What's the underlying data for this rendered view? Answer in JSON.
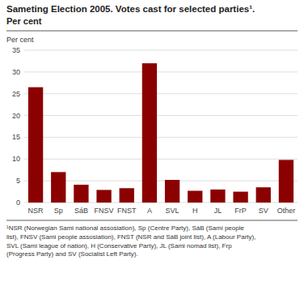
{
  "chart_data": {
    "type": "bar",
    "title": "Sameting Election 2005. Votes cast for selected parties¹.",
    "subtitle": "Per cent",
    "ylabel": "Per cent",
    "categories": [
      "NSR",
      "Sp",
      "SáB",
      "FNSV",
      "FNST",
      "A",
      "SVL",
      "H",
      "JL",
      "FrP",
      "SV",
      "Other"
    ],
    "values": [
      26.5,
      7.0,
      4.1,
      2.9,
      3.3,
      32.0,
      5.2,
      2.7,
      3.0,
      2.5,
      3.5,
      9.8
    ],
    "color": "#8B0000",
    "ylim": [
      0,
      35
    ],
    "yticks": [
      0,
      5,
      10,
      15,
      20,
      25,
      30,
      35
    ],
    "grid": true,
    "footnote": "¹NSR (Norwegian Sami national assosiation), Sp (Centre Party), SáB (Sami people\nlist), FNSV (Sami people assosiation), FNST (NSR and SáB joint list), A (Labour Party),\nSVL (Sami league of nation), H (Conservative Party), JL (Sami nomad list), Frp\n(Progress Party) and SV (Socialist Left Party)."
  }
}
